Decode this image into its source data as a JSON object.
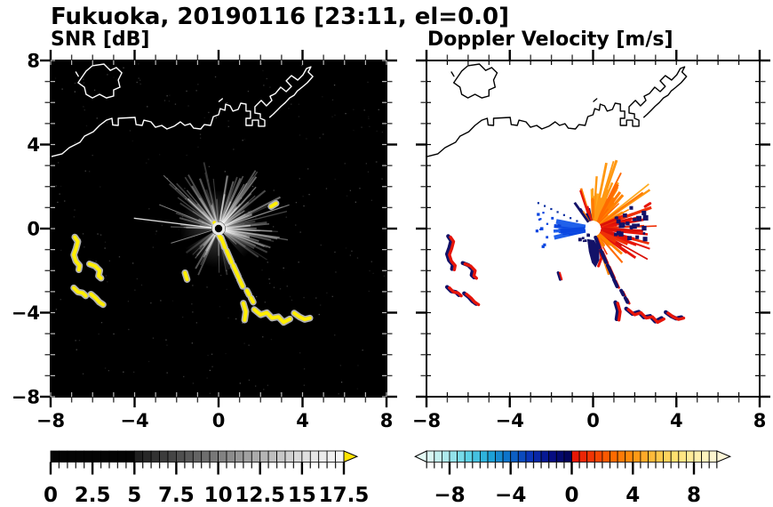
{
  "figure": {
    "title": "Fukuoka, 20190116 [23:11, el=0.0]",
    "background": "#ffffff",
    "text_color": "#000000"
  },
  "axes": {
    "xlim": [
      -8,
      8
    ],
    "ylim": [
      -8,
      8
    ],
    "major_ticks": [
      -8,
      -4,
      0,
      4,
      8
    ],
    "minor_step": 1,
    "tick_labels": [
      "−8",
      "−4",
      "0",
      "4",
      "8"
    ]
  },
  "chart_data": [
    {
      "type": "heatmap",
      "id": "snr",
      "title": "SNR [dB]",
      "units": "dB",
      "background": "#000000",
      "coast_color": "#ffffff",
      "tick_inside_color": "#bcbcbc",
      "colorbar": {
        "min": 0,
        "max": 17.5,
        "block": 0.5,
        "label_values": [
          0,
          2.5,
          5,
          7.5,
          10,
          12.5,
          15,
          17.5
        ],
        "label_strings": [
          "0",
          "2.5",
          "5",
          "7.5",
          "10",
          "12.5",
          "15",
          "17.5"
        ],
        "black_until": 5,
        "gray_stops": [
          "#1a1a1a",
          "#4a4a4a",
          "#7d7d7d",
          "#b0b0b0",
          "#dedede",
          "#f8f8f8"
        ],
        "over_arrow_color": "#ffe300"
      },
      "features": {
        "speckle": {
          "n": 280,
          "seed": 11,
          "opacity": [
            0.06,
            0.32
          ]
        },
        "glow": {
          "r": 44,
          "opacity": 0.28
        },
        "ray_sectors": [
          {
            "a": [
              18,
              95
            ],
            "n": 34,
            "r": [
              30,
              88
            ],
            "o": [
              0.15,
              0.5
            ]
          },
          {
            "a": [
              95,
              150
            ],
            "n": 20,
            "r": [
              25,
              80
            ],
            "o": [
              0.12,
              0.4
            ]
          },
          {
            "a": [
              150,
              188
            ],
            "n": 9,
            "r": [
              18,
              55
            ],
            "o": [
              0.1,
              0.3
            ]
          },
          {
            "a": [
              212,
              247
            ],
            "n": 13,
            "r": [
              22,
              60
            ],
            "o": [
              0.14,
              0.42
            ]
          },
          {
            "a": [
              262,
              288
            ],
            "n": 7,
            "r": [
              20,
              60
            ],
            "o": [
              0.1,
              0.28
            ]
          },
          {
            "a": [
              312,
              338
            ],
            "n": 8,
            "r": [
              20,
              65
            ],
            "o": [
              0.1,
              0.28
            ]
          },
          {
            "a": [
              338,
              378
            ],
            "n": 22,
            "r": [
              28,
              80
            ],
            "o": [
              0.15,
              0.45
            ]
          }
        ],
        "long_rays": [
          {
            "a": 173,
            "r": 96,
            "w": 1.3,
            "o": 0.85
          },
          {
            "a": 158,
            "r": 72,
            "w": 1.0,
            "o": 0.5
          },
          {
            "a": 197,
            "r": 56,
            "w": 1.0,
            "o": 0.5
          },
          {
            "a": 136,
            "r": 86,
            "w": 1.0,
            "o": 0.45
          }
        ],
        "dark_wedges": [
          {
            "a0": 288,
            "a1": 312,
            "r": 80
          },
          {
            "a0": 198,
            "a1": 211,
            "r": 70
          }
        ],
        "center": {
          "blob_r": 7.5,
          "blob_color": "#e8e8e8",
          "dot_r": 4.2,
          "dot_color": "#000000"
        },
        "echo_color": "#ffee00",
        "echo_halo": "#c0c0c0"
      }
    },
    {
      "type": "heatmap",
      "id": "velocity",
      "title": "Doppler Velocity [m/s]",
      "units": "m/s",
      "background": "#ffffff",
      "coast_color": "#000000",
      "tick_inside_color": "#000000",
      "colorbar": {
        "min": -9.5,
        "max": 9.5,
        "block": 0.5,
        "label_values": [
          -8,
          -4,
          0,
          4,
          8
        ],
        "label_strings": [
          "−8",
          "−4",
          "0",
          "4",
          "8"
        ],
        "cool_stops": [
          "#e4faf5",
          "#a8e9ec",
          "#5ed2e6",
          "#1fa8d8",
          "#0c6cc8",
          "#0a34b8",
          "#060e86",
          "#020250"
        ],
        "warm_stops": [
          "#e41008",
          "#f23804",
          "#ff6a00",
          "#ff9410",
          "#ffc040",
          "#ffe070",
          "#fff0a8",
          "#fdf6d8"
        ]
      },
      "features": {
        "dotted_ray": {
          "a": 155,
          "n": 7,
          "r": [
            20,
            68
          ],
          "s": 2.2,
          "color": "#0a2ea0"
        },
        "blue_dots": {
          "a": [
            162,
            202
          ],
          "n": 12,
          "r": [
            46,
            64
          ],
          "s": [
            2,
            3.5
          ],
          "color": "#0a46e0"
        },
        "blue_fan": {
          "a": [
            167,
            196
          ],
          "n": 18,
          "r": [
            24,
            46
          ],
          "w": [
            3,
            6
          ],
          "colors": [
            "#0a46e0",
            "#0b3cd0",
            "#2060ea"
          ]
        },
        "orange_fan": {
          "a": [
            24,
            95
          ],
          "n": 42,
          "r": [
            22,
            82
          ],
          "w": [
            1.5,
            3.5
          ],
          "colors": [
            "#ff9812",
            "#ff8400",
            "#ff6a00",
            "#ffab20",
            "#ff7a00"
          ]
        },
        "red_fan": {
          "a": [
            -38,
            24
          ],
          "n": 36,
          "r": [
            20,
            72
          ],
          "w": [
            1.5,
            3.5
          ],
          "colors": [
            "#e6150a",
            "#ef3007",
            "#d91108"
          ]
        },
        "orange_fan_low": {
          "a": [
            -75,
            -40
          ],
          "n": 10,
          "r": [
            18,
            55
          ],
          "w": [
            1.5,
            3
          ],
          "colors": [
            "#ff8400",
            "#ef3007",
            "#ff6a00"
          ]
        },
        "navy_dots": {
          "a": [
            -15,
            30
          ],
          "n": 24,
          "r": [
            26,
            62
          ],
          "s": [
            2.5,
            6
          ],
          "color": "#131268"
        },
        "sw_navy_dots": {
          "a": [
            215,
            245
          ],
          "n": 6,
          "r": [
            9,
            20
          ],
          "s": [
            2,
            4
          ],
          "color": "#131268"
        },
        "nw_dashes": {
          "a": [
            98,
            128
          ],
          "n": 8,
          "r": [
            18,
            50
          ],
          "w": [
            2,
            3
          ],
          "colors": [
            "#131268",
            "#e6150a",
            "#ff7a00"
          ]
        },
        "navy_blob": [
          [
            -0.28,
            -0.5
          ],
          [
            0.05,
            -0.55
          ],
          [
            0.3,
            -1.0
          ],
          [
            0.3,
            -1.5
          ],
          [
            0.12,
            -1.85
          ],
          [
            -0.06,
            -1.62
          ],
          [
            -0.2,
            -1.1
          ]
        ],
        "blob_fringe": [
          [
            0.34,
            -0.95
          ],
          [
            0.4,
            -1.4
          ],
          [
            0.26,
            -1.78
          ]
        ],
        "small_red_dash": [
          [
            2.5,
            1.05
          ],
          [
            2.74,
            1.2
          ]
        ],
        "echo_red": "#e6150a",
        "echo_navy": "#131268",
        "center_hole_r": 7,
        "seed": 23
      }
    }
  ],
  "coastline": {
    "island": [
      [
        -6.69,
        6.94
      ],
      [
        -6.31,
        7.49
      ],
      [
        -6.01,
        7.75
      ],
      [
        -5.46,
        7.83
      ],
      [
        -5.16,
        7.53
      ],
      [
        -4.87,
        7.66
      ],
      [
        -4.61,
        7.41
      ],
      [
        -4.78,
        7.07
      ],
      [
        -4.7,
        6.73
      ],
      [
        -5.0,
        6.6
      ],
      [
        -5.0,
        6.31
      ],
      [
        -5.34,
        6.22
      ],
      [
        -5.67,
        6.39
      ],
      [
        -6.01,
        6.22
      ],
      [
        -6.31,
        6.39
      ],
      [
        -6.39,
        6.73
      ]
    ],
    "island_dash": [
      [
        -6.8,
        7.45
      ],
      [
        -6.68,
        7.25
      ]
    ],
    "coast_dash": [
      [
        0.02,
        6.05
      ],
      [
        0.18,
        6.18
      ]
    ],
    "main": [
      [
        -8,
        3.42
      ],
      [
        -7.45,
        3.56
      ],
      [
        -7.11,
        3.85
      ],
      [
        -6.6,
        4.11
      ],
      [
        -6.39,
        4.4
      ],
      [
        -5.97,
        4.61
      ],
      [
        -5.67,
        4.91
      ],
      [
        -5.34,
        5.16
      ],
      [
        -5.08,
        5.25
      ],
      [
        -5.04,
        4.93
      ],
      [
        -4.78,
        4.91
      ],
      [
        -4.78,
        5.25
      ],
      [
        -3.98,
        5.29
      ],
      [
        -3.93,
        4.95
      ],
      [
        -3.64,
        4.91
      ],
      [
        -3.56,
        5.16
      ],
      [
        -3.22,
        5.08
      ],
      [
        -3.01,
        4.82
      ],
      [
        -2.71,
        4.91
      ],
      [
        -2.46,
        4.74
      ],
      [
        -2.12,
        4.87
      ],
      [
        -1.82,
        5.08
      ],
      [
        -1.61,
        4.91
      ],
      [
        -1.35,
        4.99
      ],
      [
        -1.19,
        4.78
      ],
      [
        -0.85,
        4.74
      ],
      [
        -0.68,
        4.95
      ],
      [
        -0.38,
        4.91
      ],
      [
        -0.25,
        5.33
      ],
      [
        0,
        5.42
      ],
      [
        0.08,
        5.71
      ],
      [
        0.3,
        5.63
      ],
      [
        0.34,
        5.92
      ],
      [
        0.55,
        5.84
      ],
      [
        0.68,
        5.59
      ],
      [
        0.93,
        5.67
      ],
      [
        1.06,
        5.97
      ],
      [
        1.31,
        5.92
      ]
    ],
    "harbor": [
      [
        1.31,
        5.92
      ],
      [
        1.31,
        5.59
      ],
      [
        1.52,
        5.59
      ],
      [
        1.52,
        5.25
      ],
      [
        1.31,
        5.25
      ],
      [
        1.31,
        4.91
      ],
      [
        1.61,
        4.91
      ],
      [
        1.61,
        5.16
      ],
      [
        1.9,
        5.16
      ],
      [
        1.9,
        4.87
      ],
      [
        2.2,
        4.87
      ],
      [
        2.2,
        5.16
      ],
      [
        1.99,
        5.25
      ],
      [
        1.99,
        5.46
      ],
      [
        1.73,
        5.5
      ],
      [
        1.73,
        5.8
      ],
      [
        1.9,
        5.97
      ],
      [
        2.03,
        6.1
      ],
      [
        2.28,
        5.84
      ],
      [
        2.54,
        6.1
      ],
      [
        2.45,
        6.3
      ],
      [
        2.71,
        6.43
      ],
      [
        2.96,
        6.73
      ],
      [
        3.22,
        6.52
      ],
      [
        3.47,
        6.77
      ],
      [
        3.22,
        7.03
      ],
      [
        3.47,
        7.28
      ],
      [
        3.77,
        7.07
      ],
      [
        4.02,
        7.32
      ],
      [
        4.19,
        7.62
      ],
      [
        4.4,
        7.7
      ],
      [
        4.27,
        7.45
      ],
      [
        4.49,
        7.24
      ],
      [
        4.23,
        6.94
      ],
      [
        3.98,
        6.73
      ],
      [
        3.75,
        6.55
      ],
      [
        3.6,
        6.35
      ],
      [
        3.38,
        6.22
      ],
      [
        3.18,
        6.0
      ],
      [
        2.98,
        5.82
      ],
      [
        2.78,
        5.62
      ],
      [
        2.6,
        5.44
      ],
      [
        2.44,
        5.3
      ]
    ]
  },
  "echo_shapes": {
    "left_cluster": [
      [
        [
          -6.85,
          -0.4
        ],
        [
          -6.7,
          -0.62
        ],
        [
          -6.79,
          -0.95
        ],
        [
          -6.9,
          -1.25
        ],
        [
          -6.8,
          -1.55
        ],
        [
          -6.62,
          -1.76
        ],
        [
          -6.66,
          -1.96
        ]
      ],
      [
        [
          -6.15,
          -1.68
        ],
        [
          -5.88,
          -1.78
        ],
        [
          -5.66,
          -2.0
        ],
        [
          -5.72,
          -2.25
        ],
        [
          -5.6,
          -2.36
        ]
      ],
      [
        [
          -6.9,
          -2.82
        ],
        [
          -6.7,
          -3.02
        ],
        [
          -6.48,
          -3.06
        ],
        [
          -6.33,
          -3.2
        ]
      ],
      [
        [
          -6.08,
          -3.12
        ],
        [
          -5.86,
          -3.3
        ],
        [
          -5.68,
          -3.5
        ],
        [
          -5.5,
          -3.62
        ]
      ]
    ],
    "streak": [
      [
        [
          0.12,
          -0.42
        ],
        [
          0.3,
          -0.9
        ]
      ],
      [
        [
          0.38,
          -1.05
        ],
        [
          0.62,
          -1.6
        ]
      ],
      [
        [
          0.7,
          -1.75
        ],
        [
          0.95,
          -2.3
        ]
      ],
      [
        [
          1.0,
          -2.42
        ],
        [
          1.15,
          -2.75
        ]
      ],
      [
        [
          1.35,
          -2.95
        ],
        [
          1.45,
          -3.15
        ]
      ],
      [
        [
          1.55,
          -3.3
        ],
        [
          1.65,
          -3.5
        ]
      ]
    ],
    "bottom_cluster": [
      [
        [
          1.18,
          -3.55
        ],
        [
          1.3,
          -3.95
        ],
        [
          1.24,
          -4.35
        ]
      ],
      [
        [
          1.7,
          -3.85
        ],
        [
          2.0,
          -4.1
        ],
        [
          2.3,
          -4.0
        ],
        [
          2.55,
          -4.26
        ],
        [
          2.85,
          -4.2
        ],
        [
          3.1,
          -4.46
        ],
        [
          3.4,
          -4.3
        ]
      ],
      [
        [
          3.6,
          -4.02
        ],
        [
          3.85,
          -4.2
        ],
        [
          4.1,
          -4.32
        ],
        [
          4.35,
          -4.26
        ]
      ]
    ],
    "upper_dash": [
      [
        2.5,
        1.05
      ],
      [
        2.74,
        1.2
      ]
    ],
    "sw_dash": [
      [
        -1.6,
        -2.1
      ],
      [
        -1.5,
        -2.42
      ]
    ],
    "center_bits": [
      [
        [
          -0.2,
          0.28
        ],
        [
          -0.1,
          0.1
        ]
      ],
      [
        [
          0.02,
          -0.32
        ],
        [
          0.12,
          -0.5
        ]
      ]
    ]
  }
}
